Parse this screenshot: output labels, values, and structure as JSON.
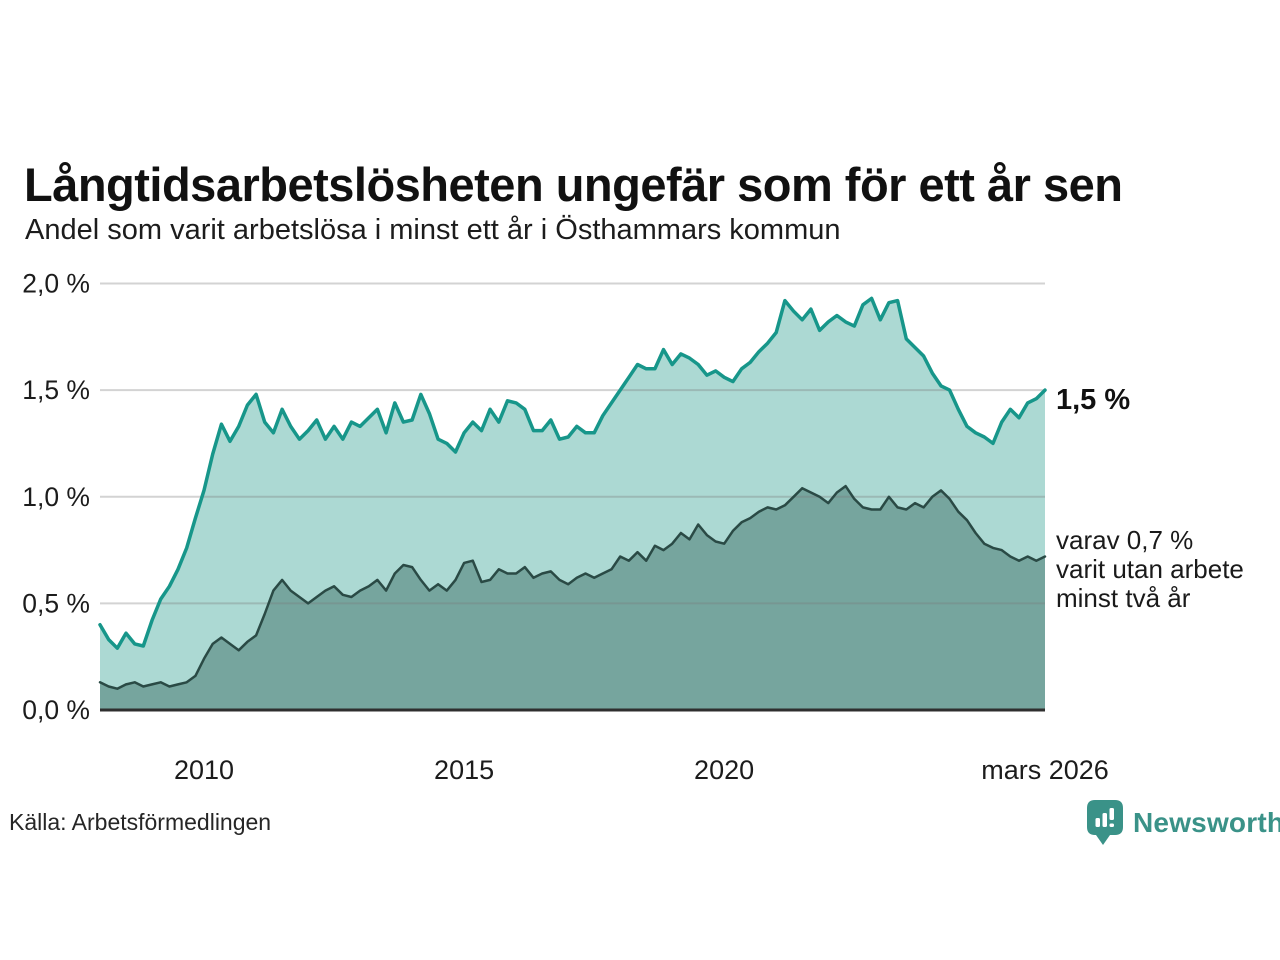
{
  "page": {
    "title": "Långtidsarbetslösheten ungefär som för ett år sen",
    "subtitle": "Andel som varit arbetslösa i minst ett år i Östhammars kommun"
  },
  "chart_data": {
    "type": "area",
    "title": "Långtidsarbetslösheten ungefär som för ett år sen",
    "subtitle": "Andel som varit arbetslösa i minst ett år i Östhammars kommun",
    "unit": "%",
    "grid": true,
    "legend_position": "right-annotations",
    "ylim": [
      0,
      2.0
    ],
    "x_range": {
      "start_year": 2008.0,
      "end_year": 2026.17
    },
    "x_ticks": [
      {
        "year": 2010,
        "label": "2010"
      },
      {
        "year": 2015,
        "label": "2015"
      },
      {
        "year": 2020,
        "label": "2020"
      },
      {
        "year": 2026.17,
        "label": "mars 2026"
      }
    ],
    "y_ticks": [
      {
        "value": 0.0,
        "label": "0,0 %"
      },
      {
        "value": 0.5,
        "label": "0,5 %"
      },
      {
        "value": 1.0,
        "label": "1,0 %"
      },
      {
        "value": 1.5,
        "label": "1,5 %"
      },
      {
        "value": 2.0,
        "label": "2,0 %"
      }
    ],
    "series": [
      {
        "name": "Andel som varit arbetslösa i minst ett år",
        "line_color": "#17968a",
        "fill_color": "#a9d7d1",
        "line_width": 3.5,
        "latest_value": 1.5,
        "values": [
          0.4,
          0.33,
          0.29,
          0.36,
          0.31,
          0.3,
          0.42,
          0.52,
          0.58,
          0.66,
          0.76,
          0.9,
          1.03,
          1.2,
          1.34,
          1.26,
          1.33,
          1.43,
          1.48,
          1.35,
          1.3,
          1.41,
          1.33,
          1.27,
          1.31,
          1.36,
          1.27,
          1.33,
          1.27,
          1.35,
          1.33,
          1.37,
          1.41,
          1.3,
          1.44,
          1.35,
          1.36,
          1.48,
          1.39,
          1.27,
          1.25,
          1.21,
          1.3,
          1.35,
          1.31,
          1.41,
          1.35,
          1.45,
          1.44,
          1.41,
          1.31,
          1.31,
          1.36,
          1.27,
          1.28,
          1.33,
          1.3,
          1.3,
          1.38,
          1.44,
          1.5,
          1.56,
          1.62,
          1.6,
          1.6,
          1.69,
          1.62,
          1.67,
          1.65,
          1.62,
          1.57,
          1.59,
          1.56,
          1.54,
          1.6,
          1.63,
          1.68,
          1.72,
          1.77,
          1.92,
          1.87,
          1.83,
          1.88,
          1.78,
          1.82,
          1.85,
          1.82,
          1.8,
          1.9,
          1.93,
          1.83,
          1.91,
          1.92,
          1.74,
          1.7,
          1.66,
          1.58,
          1.52,
          1.5,
          1.41,
          1.33,
          1.3,
          1.28,
          1.25,
          1.35,
          1.41,
          1.37,
          1.44,
          1.46,
          1.5
        ]
      },
      {
        "name": "varav utan arbete minst två år",
        "line_color": "#2a4a45",
        "fill_color": "#74a29b",
        "line_width": 2.5,
        "latest_value": 0.7,
        "values": [
          0.13,
          0.11,
          0.1,
          0.12,
          0.13,
          0.11,
          0.12,
          0.13,
          0.11,
          0.12,
          0.13,
          0.16,
          0.24,
          0.31,
          0.34,
          0.31,
          0.28,
          0.32,
          0.35,
          0.45,
          0.56,
          0.61,
          0.56,
          0.53,
          0.5,
          0.53,
          0.56,
          0.58,
          0.54,
          0.53,
          0.56,
          0.58,
          0.61,
          0.56,
          0.64,
          0.68,
          0.67,
          0.61,
          0.56,
          0.59,
          0.56,
          0.61,
          0.69,
          0.7,
          0.6,
          0.61,
          0.66,
          0.64,
          0.64,
          0.67,
          0.62,
          0.64,
          0.65,
          0.61,
          0.59,
          0.62,
          0.64,
          0.62,
          0.64,
          0.66,
          0.72,
          0.7,
          0.74,
          0.7,
          0.77,
          0.75,
          0.78,
          0.83,
          0.8,
          0.87,
          0.82,
          0.79,
          0.78,
          0.84,
          0.88,
          0.9,
          0.93,
          0.95,
          0.94,
          0.96,
          1.0,
          1.04,
          1.02,
          1.0,
          0.97,
          1.02,
          1.05,
          0.99,
          0.95,
          0.94,
          0.94,
          1.0,
          0.95,
          0.94,
          0.97,
          0.95,
          1.0,
          1.03,
          0.99,
          0.93,
          0.89,
          0.83,
          0.78,
          0.76,
          0.75,
          0.72,
          0.7,
          0.72,
          0.7,
          0.72
        ]
      }
    ],
    "annotations": {
      "latest_total": "1,5 %",
      "sub_lines": [
        "varav 0,7 %",
        "varit utan arbete",
        "minst två år"
      ]
    },
    "colors": {
      "gridline": "#d5d5d5",
      "baseline": "#2f2f2f",
      "tick_text": "#1c1c1c"
    }
  },
  "footer": {
    "source": "Källa: Arbetsförmedlingen",
    "brand": "Newsworthy",
    "brand_color": "#3a9288"
  }
}
